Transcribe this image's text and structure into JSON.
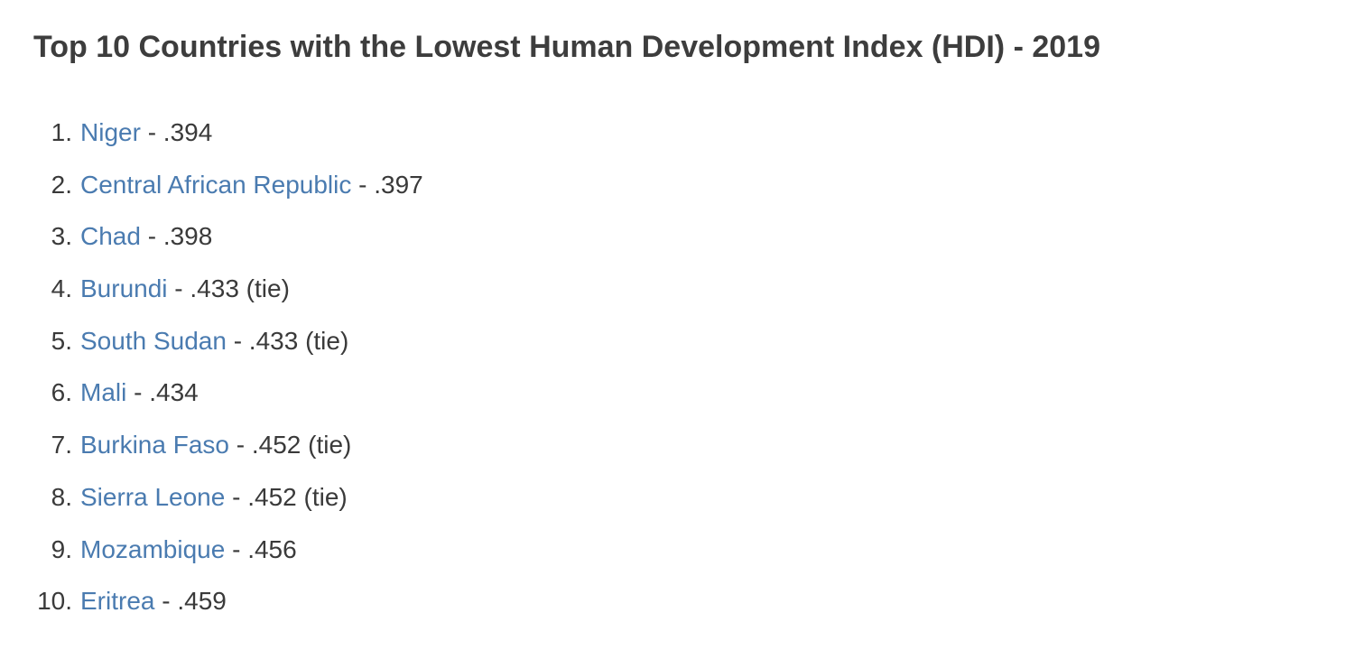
{
  "title": "Top 10 Countries with the Lowest Human Development Index (HDI) - 2019",
  "colors": {
    "text": "#3a3a3a",
    "link": "#4a7bb0",
    "background": "#ffffff"
  },
  "items": [
    {
      "rank": "1.",
      "country": "Niger",
      "value": " - .394"
    },
    {
      "rank": "2.",
      "country": "Central African Republic",
      "value": " - .397"
    },
    {
      "rank": "3.",
      "country": "Chad",
      "value": " - .398"
    },
    {
      "rank": "4.",
      "country": "Burundi",
      "value": " - .433 (tie)"
    },
    {
      "rank": "5.",
      "country": "South Sudan",
      "value": " - .433 (tie)"
    },
    {
      "rank": "6.",
      "country": "Mali",
      "value": " - .434"
    },
    {
      "rank": "7.",
      "country": "Burkina Faso",
      "value": " - .452 (tie)"
    },
    {
      "rank": "8.",
      "country": "Sierra Leone",
      "value": " - .452 (tie)"
    },
    {
      "rank": "9.",
      "country": "Mozambique",
      "value": " - .456"
    },
    {
      "rank": "10.",
      "country": "Eritrea",
      "value": " - .459"
    }
  ]
}
